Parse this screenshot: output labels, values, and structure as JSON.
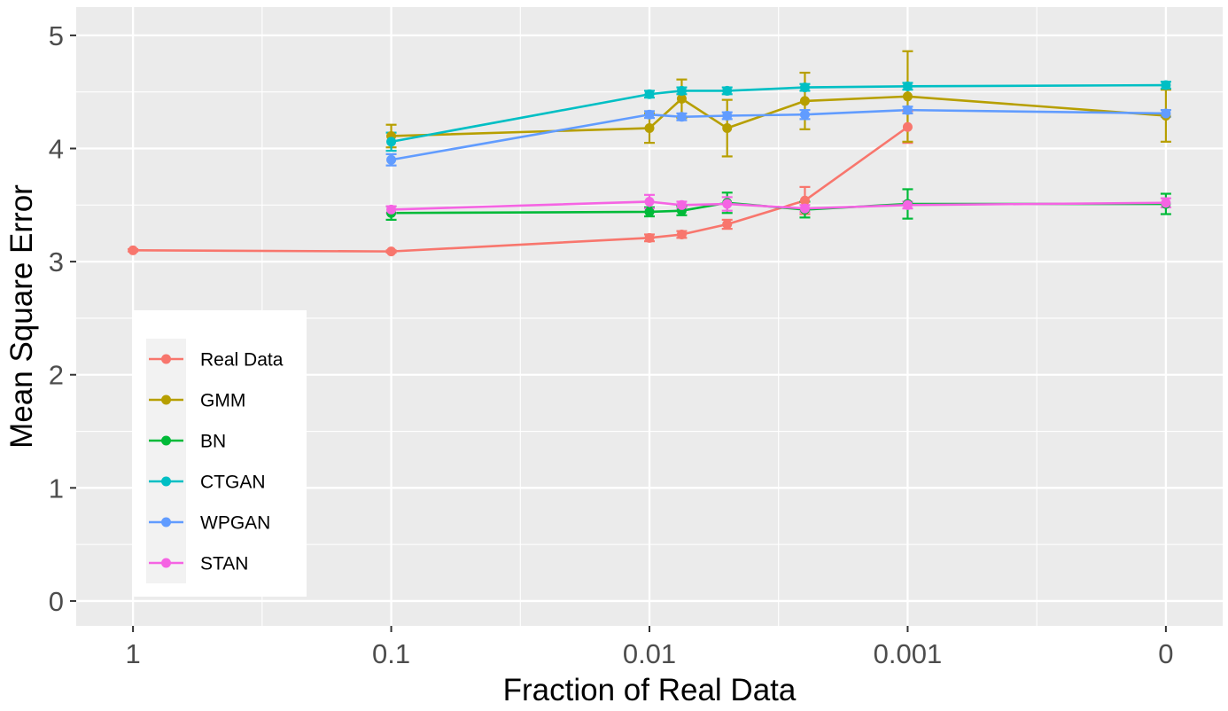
{
  "chart_data": {
    "type": "line",
    "title": "",
    "xlabel": "Fraction of Real Data",
    "ylabel": "Mean Square Error",
    "x_tick_labels": [
      "1",
      "0.1",
      "0.01",
      "0.001",
      "0"
    ],
    "y_tick_labels": [
      "0",
      "1",
      "2",
      "3",
      "4",
      "5"
    ],
    "ylim": [
      -0.22,
      5.25
    ],
    "xlim_index": [
      -0.22,
      4.22
    ],
    "grid": true,
    "legend_position": "left-middle",
    "series": [
      {
        "name": "Real Data",
        "color": "#F8766D",
        "points": [
          {
            "x": 0,
            "y": 3.1,
            "err": 0.01
          },
          {
            "x": 1,
            "y": 3.09,
            "err": 0.01
          },
          {
            "x": 2,
            "y": 3.21,
            "err": 0.03
          },
          {
            "x": 2.125,
            "y": 3.24,
            "err": 0.03
          },
          {
            "x": 2.301,
            "y": 3.33,
            "err": 0.04
          },
          {
            "x": 2.602,
            "y": 3.54,
            "err": 0.12
          },
          {
            "x": 3,
            "y": 4.19,
            "err": 0.14
          }
        ]
      },
      {
        "name": "GMM",
        "color": "#B79F00",
        "points": [
          {
            "x": 1,
            "y": 4.11,
            "err": 0.1
          },
          {
            "x": 2,
            "y": 4.18,
            "err": 0.13
          },
          {
            "x": 2.125,
            "y": 4.44,
            "err": 0.17
          },
          {
            "x": 2.301,
            "y": 4.18,
            "err": 0.25
          },
          {
            "x": 2.602,
            "y": 4.42,
            "err": 0.25
          },
          {
            "x": 3,
            "y": 4.46,
            "err": 0.4
          },
          {
            "x": 4,
            "y": 4.29,
            "err": 0.23
          }
        ]
      },
      {
        "name": "BN",
        "color": "#00BA38",
        "points": [
          {
            "x": 1,
            "y": 3.43,
            "err": 0.06
          },
          {
            "x": 2,
            "y": 3.44,
            "err": 0.04
          },
          {
            "x": 2.125,
            "y": 3.45,
            "err": 0.04
          },
          {
            "x": 2.301,
            "y": 3.52,
            "err": 0.09
          },
          {
            "x": 2.602,
            "y": 3.46,
            "err": 0.07
          },
          {
            "x": 3,
            "y": 3.51,
            "err": 0.13
          },
          {
            "x": 4,
            "y": 3.51,
            "err": 0.09
          }
        ]
      },
      {
        "name": "CTGAN",
        "color": "#00BFC4",
        "points": [
          {
            "x": 1,
            "y": 4.06,
            "err": 0.08
          },
          {
            "x": 2,
            "y": 4.48,
            "err": 0.03
          },
          {
            "x": 2.125,
            "y": 4.51,
            "err": 0.03
          },
          {
            "x": 2.301,
            "y": 4.51,
            "err": 0.03
          },
          {
            "x": 2.602,
            "y": 4.54,
            "err": 0.03
          },
          {
            "x": 3,
            "y": 4.55,
            "err": 0.03
          },
          {
            "x": 4,
            "y": 4.56,
            "err": 0.03
          }
        ]
      },
      {
        "name": "WPGAN",
        "color": "#619CFF",
        "points": [
          {
            "x": 1,
            "y": 3.9,
            "err": 0.05
          },
          {
            "x": 2,
            "y": 4.3,
            "err": 0.03
          },
          {
            "x": 2.125,
            "y": 4.28,
            "err": 0.03
          },
          {
            "x": 2.301,
            "y": 4.29,
            "err": 0.03
          },
          {
            "x": 2.602,
            "y": 4.3,
            "err": 0.04
          },
          {
            "x": 3,
            "y": 4.34,
            "err": 0.03
          },
          {
            "x": 4,
            "y": 4.31,
            "err": 0.03
          }
        ]
      },
      {
        "name": "STAN",
        "color": "#F564E3",
        "points": [
          {
            "x": 1,
            "y": 3.46,
            "err": 0.03
          },
          {
            "x": 2,
            "y": 3.53,
            "err": 0.06
          },
          {
            "x": 2.125,
            "y": 3.5,
            "err": 0.03
          },
          {
            "x": 2.301,
            "y": 3.51,
            "err": 0.06
          },
          {
            "x": 2.602,
            "y": 3.47,
            "err": 0.03
          },
          {
            "x": 3,
            "y": 3.5,
            "err": 0.03
          },
          {
            "x": 4,
            "y": 3.52,
            "err": 0.04
          }
        ]
      }
    ]
  }
}
